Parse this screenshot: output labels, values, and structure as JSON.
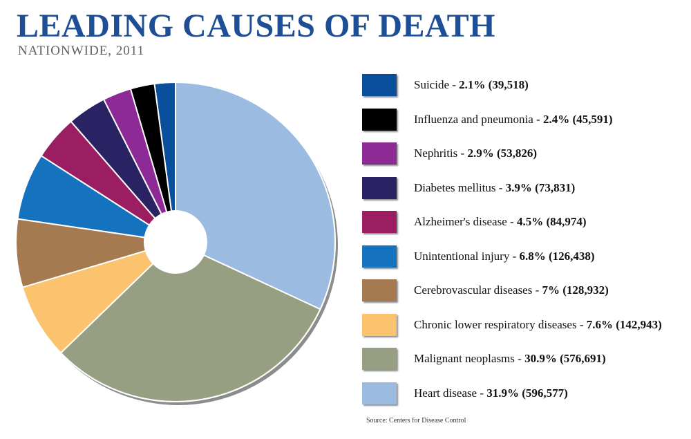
{
  "header": {
    "title": "LEADING CAUSES OF DEATH",
    "subtitle": "NATIONWIDE, 2011"
  },
  "footer": {
    "source": "Source: Centers for Disease Control"
  },
  "chart_data": {
    "type": "pie",
    "donut_hole": true,
    "legend_placement": "right",
    "title": "LEADING CAUSES OF DEATH",
    "subtitle": "NATIONWIDE, 2011",
    "slices": [
      {
        "label": "Suicide",
        "percent": 2.1,
        "percent_text": "2.1%",
        "count_text": "(39,518)",
        "value": 39518,
        "color": "#0a4f9c"
      },
      {
        "label": "Influenza and pneumonia",
        "percent": 2.4,
        "percent_text": "2.4%",
        "count_text": "(45,591)",
        "value": 45591,
        "color": "#000000"
      },
      {
        "label": "Nephritis",
        "percent": 2.9,
        "percent_text": "2.9%",
        "count_text": "(53,826)",
        "value": 53826,
        "color": "#8e2a96"
      },
      {
        "label": "Diabetes mellitus",
        "percent": 3.9,
        "percent_text": "3.9%",
        "count_text": "(73,831)",
        "value": 73831,
        "color": "#2a2363"
      },
      {
        "label": "Alzheimer's disease",
        "percent": 4.5,
        "percent_text": "4.5%",
        "count_text": "(84,974)",
        "value": 84974,
        "color": "#9b1e63"
      },
      {
        "label": "Unintentional injury",
        "percent": 6.8,
        "percent_text": "6.8%",
        "count_text": "(126,438)",
        "value": 126438,
        "color": "#1472bf"
      },
      {
        "label": "Cerebrovascular diseases",
        "percent": 7,
        "percent_text": "7%",
        "count_text": "(128,932)",
        "value": 128932,
        "color": "#a57a50"
      },
      {
        "label": "Chronic lower respiratory diseases",
        "percent": 7.6,
        "percent_text": "7.6%",
        "count_text": "(142,943)",
        "value": 142943,
        "color": "#fbc36e"
      },
      {
        "label": "Malignant neoplasms",
        "percent": 30.9,
        "percent_text": "30.9%",
        "count_text": "(576,691)",
        "value": 576691,
        "color": "#979f82"
      },
      {
        "label": "Heart disease",
        "percent": 31.9,
        "percent_text": "31.9%",
        "count_text": "(596,577)",
        "value": 596577,
        "color": "#9bbbe1"
      }
    ]
  }
}
